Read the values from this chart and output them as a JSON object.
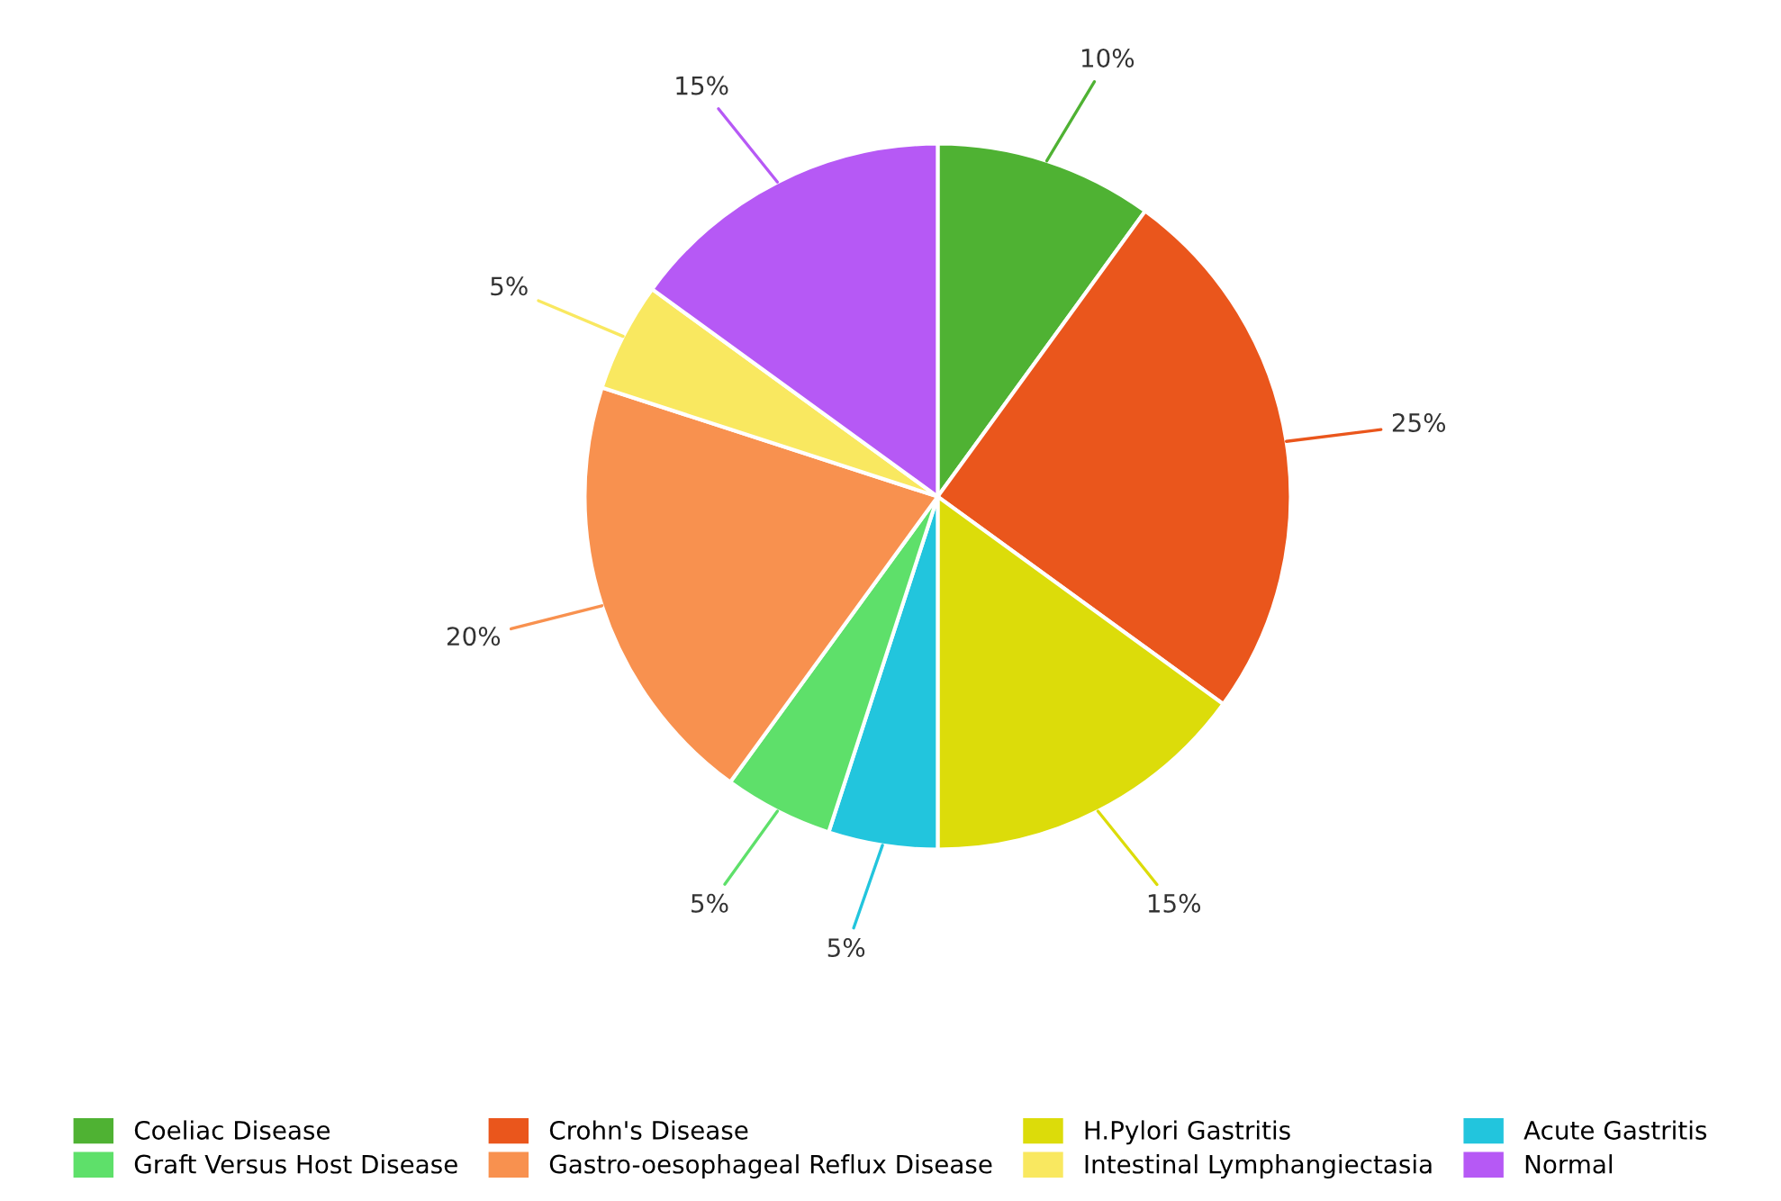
{
  "chart_data": {
    "type": "pie",
    "categories": [
      "Coeliac Disease",
      "Crohn's Disease",
      "H.Pylori Gastritis",
      "Acute Gastritis",
      "Graft Versus Host Disease",
      "Gastro-oesophageal Reflux Disease",
      "Intestinal Lymphangiectasia",
      "Normal"
    ],
    "values": [
      10,
      25,
      15,
      5,
      5,
      20,
      5,
      15
    ],
    "value_labels": [
      "10%",
      "25%",
      "15%",
      "5%",
      "5%",
      "20%",
      "5%",
      "15%"
    ],
    "colors": [
      "#4fb233",
      "#ea561c",
      "#dcdc0a",
      "#22c5dd",
      "#5ee06a",
      "#f8914f",
      "#f9e860",
      "#b659f5"
    ],
    "legend": "bottom"
  }
}
